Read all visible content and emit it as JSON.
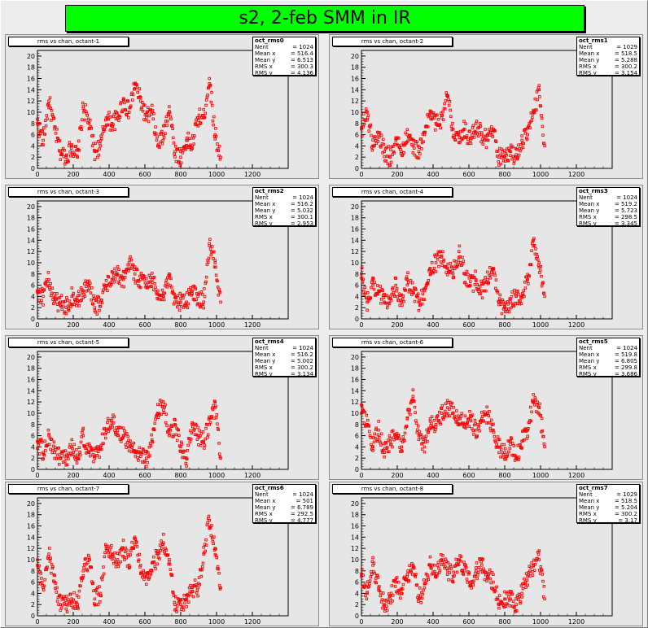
{
  "title": "s2, 2-feb SMM in IR",
  "stat_labels": {
    "entries": "Nent",
    "mean_x": "Mean x",
    "mean_y": "Mean y",
    "rms_x": "RMS x",
    "rms_y": "RMS y"
  },
  "chart_data": [
    {
      "type": "scatter",
      "title": "rms vs chan, octant-1",
      "stats_name": "oct_rms0",
      "stats": {
        "entries": "1024",
        "mean_x": "516.4",
        "mean_y": "6.513",
        "rms_x": "300.3",
        "rms_y": "4.136"
      },
      "xlim": [
        0,
        1400
      ],
      "ylim": [
        0,
        21
      ],
      "xticks": [
        0,
        200,
        400,
        600,
        800,
        1000,
        1200
      ],
      "yticks": [
        0,
        2,
        4,
        6,
        8,
        10,
        12,
        14,
        16,
        18,
        20
      ],
      "x": [
        0,
        32,
        64,
        96,
        128,
        160,
        192,
        224,
        256,
        288,
        320,
        352,
        384,
        416,
        448,
        480,
        512,
        544,
        576,
        608,
        640,
        672,
        704,
        736,
        768,
        800,
        832,
        864,
        896,
        928,
        960,
        992,
        1023
      ],
      "y": [
        8,
        5,
        12,
        7,
        3,
        2,
        4,
        2,
        11,
        8,
        3,
        4,
        9,
        8,
        9,
        12,
        10,
        15,
        12,
        9,
        10,
        4,
        6,
        11,
        3,
        2,
        5,
        4,
        9,
        9,
        16,
        6,
        2
      ],
      "color": "#ff0000"
    },
    {
      "type": "scatter",
      "title": "rms vs chan, octant-2",
      "stats_name": "oct_rms1",
      "stats": {
        "entries": "1029",
        "mean_x": "518.5",
        "mean_y": "5.288",
        "rms_x": "300.2",
        "rms_y": "3.154"
      },
      "xlim": [
        0,
        1400
      ],
      "ylim": [
        0,
        21
      ],
      "xticks": [
        0,
        200,
        400,
        600,
        800,
        1000,
        1200
      ],
      "yticks": [
        0,
        2,
        4,
        6,
        8,
        10,
        12,
        14,
        16,
        18,
        20
      ],
      "x": [
        0,
        32,
        64,
        96,
        128,
        160,
        192,
        224,
        256,
        288,
        320,
        352,
        384,
        416,
        448,
        480,
        512,
        544,
        576,
        608,
        640,
        672,
        704,
        736,
        768,
        800,
        832,
        864,
        896,
        928,
        960,
        992,
        1023
      ],
      "y": [
        7,
        10,
        4,
        6,
        3,
        2,
        5,
        3,
        6,
        4,
        3,
        6,
        10,
        8,
        9,
        13,
        7,
        6,
        7,
        5,
        8,
        6,
        5,
        7,
        2,
        2,
        3,
        2,
        5,
        6,
        10,
        14,
        4
      ],
      "color": "#ff0000"
    },
    {
      "type": "scatter",
      "title": "rms vs chan, octant-3",
      "stats_name": "oct_rms2",
      "stats": {
        "entries": "1024",
        "mean_x": "516.2",
        "mean_y": "5.032",
        "rms_x": "300.1",
        "rms_y": "2.953"
      },
      "xlim": [
        0,
        1400
      ],
      "ylim": [
        0,
        21
      ],
      "xticks": [
        0,
        200,
        400,
        600,
        800,
        1000,
        1200
      ],
      "yticks": [
        0,
        2,
        4,
        6,
        8,
        10,
        12,
        14,
        16,
        18,
        20
      ],
      "x": [
        0,
        32,
        64,
        96,
        128,
        160,
        192,
        224,
        256,
        288,
        320,
        352,
        384,
        416,
        448,
        480,
        512,
        544,
        576,
        608,
        640,
        672,
        704,
        736,
        768,
        800,
        832,
        864,
        896,
        928,
        960,
        992,
        1023
      ],
      "y": [
        5,
        4,
        7,
        3,
        3,
        2,
        4,
        3,
        5,
        6,
        2,
        3,
        6,
        7,
        8,
        7,
        10,
        8,
        7,
        6,
        7,
        5,
        4,
        8,
        3,
        3,
        3,
        5,
        4,
        3,
        13,
        10,
        3
      ],
      "color": "#ff0000"
    },
    {
      "type": "scatter",
      "title": "rms vs chan, octant-4",
      "stats_name": "oct_rms3",
      "stats": {
        "entries": "1024",
        "mean_x": "519.2",
        "mean_y": "5.723",
        "rms_x": "298.5",
        "rms_y": "3.345"
      },
      "xlim": [
        0,
        1400
      ],
      "ylim": [
        0,
        21
      ],
      "xticks": [
        0,
        200,
        400,
        600,
        800,
        1000,
        1200
      ],
      "yticks": [
        0,
        2,
        4,
        6,
        8,
        10,
        12,
        14,
        16,
        18,
        20
      ],
      "x": [
        0,
        32,
        64,
        96,
        128,
        160,
        192,
        224,
        256,
        288,
        320,
        352,
        384,
        416,
        448,
        480,
        512,
        544,
        576,
        608,
        640,
        672,
        704,
        736,
        768,
        800,
        832,
        864,
        896,
        928,
        960,
        992,
        1023
      ],
      "y": [
        8,
        3,
        6,
        5,
        3,
        4,
        6,
        3,
        7,
        5,
        3,
        5,
        9,
        10,
        11,
        9,
        8,
        12,
        8,
        6,
        7,
        5,
        7,
        9,
        3,
        2,
        3,
        4,
        4,
        7,
        14,
        10,
        4
      ],
      "color": "#ff0000"
    },
    {
      "type": "scatter",
      "title": "rms vs chan, octant-5",
      "stats_name": "oct_rms4",
      "stats": {
        "entries": "1024",
        "mean_x": "516.2",
        "mean_y": "5.002",
        "rms_x": "300.2",
        "rms_y": "3.134"
      },
      "xlim": [
        0,
        1400
      ],
      "ylim": [
        0,
        21
      ],
      "xticks": [
        0,
        200,
        400,
        600,
        800,
        1000,
        1200
      ],
      "yticks": [
        0,
        2,
        4,
        6,
        8,
        10,
        12,
        14,
        16,
        18,
        20
      ],
      "x": [
        0,
        32,
        64,
        96,
        128,
        160,
        192,
        224,
        256,
        288,
        320,
        352,
        384,
        416,
        448,
        480,
        512,
        544,
        576,
        608,
        640,
        672,
        704,
        736,
        768,
        800,
        832,
        864,
        896,
        928,
        960,
        992,
        1023
      ],
      "y": [
        5,
        3,
        6,
        3,
        2,
        2,
        4,
        2,
        6,
        3,
        2,
        4,
        7,
        9,
        6,
        6,
        4,
        3,
        3,
        2,
        5,
        10,
        12,
        6,
        8,
        4,
        2,
        8,
        6,
        5,
        8,
        11,
        2
      ],
      "color": "#ff0000"
    },
    {
      "type": "scatter",
      "title": "rms vs chan, octant-6",
      "stats_name": "oct_rms5",
      "stats": {
        "entries": "1024",
        "mean_x": "519.8",
        "mean_y": "6.805",
        "rms_x": "299.8",
        "rms_y": "3.686"
      },
      "xlim": [
        0,
        1400
      ],
      "ylim": [
        0,
        21
      ],
      "xticks": [
        0,
        200,
        400,
        600,
        800,
        1000,
        1200
      ],
      "yticks": [
        0,
        2,
        4,
        6,
        8,
        10,
        12,
        14,
        16,
        18,
        20
      ],
      "x": [
        0,
        32,
        64,
        96,
        128,
        160,
        192,
        224,
        256,
        288,
        320,
        352,
        384,
        416,
        448,
        480,
        512,
        544,
        576,
        608,
        640,
        672,
        704,
        736,
        768,
        800,
        832,
        864,
        896,
        928,
        960,
        992,
        1023
      ],
      "y": [
        10,
        8,
        4,
        7,
        3,
        5,
        6,
        4,
        9,
        13,
        6,
        4,
        9,
        8,
        10,
        11,
        10,
        9,
        8,
        9,
        7,
        9,
        10,
        7,
        4,
        3,
        5,
        2,
        5,
        7,
        12,
        11,
        4
      ],
      "color": "#ff0000"
    },
    {
      "type": "scatter",
      "title": "rms vs chan, octant-7",
      "stats_name": "oct_rms6",
      "stats": {
        "entries": "1024",
        "mean_x": "501",
        "mean_y": "6.789",
        "rms_x": "292.5",
        "rms_y": "4.777"
      },
      "xlim": [
        0,
        1400
      ],
      "ylim": [
        0,
        21
      ],
      "xticks": [
        0,
        200,
        400,
        600,
        800,
        1000,
        1200
      ],
      "yticks": [
        0,
        2,
        4,
        6,
        8,
        10,
        12,
        14,
        16,
        18,
        20
      ],
      "x": [
        0,
        32,
        64,
        96,
        128,
        160,
        192,
        224,
        256,
        288,
        320,
        352,
        384,
        416,
        448,
        480,
        512,
        544,
        576,
        608,
        640,
        672,
        704,
        736,
        768,
        800,
        832,
        864,
        896,
        928,
        960,
        992,
        1023
      ],
      "y": [
        9,
        5,
        11,
        6,
        2,
        2,
        3,
        2,
        8,
        10,
        3,
        4,
        12,
        11,
        10,
        12,
        9,
        14,
        9,
        7,
        8,
        11,
        13,
        10,
        2,
        2,
        3,
        5,
        5,
        11,
        17,
        12,
        5
      ],
      "color": "#ff0000"
    },
    {
      "type": "scatter",
      "title": "rms vs chan, octant-8",
      "stats_name": "oct_rms7",
      "stats": {
        "entries": "1029",
        "mean_x": "518.5",
        "mean_y": "5.204",
        "rms_x": "300.2",
        "rms_y": "3.17"
      },
      "xlim": [
        0,
        1400
      ],
      "ylim": [
        0,
        21
      ],
      "xticks": [
        0,
        200,
        400,
        600,
        800,
        1000,
        1200
      ],
      "yticks": [
        0,
        2,
        4,
        6,
        8,
        10,
        12,
        14,
        16,
        18,
        20
      ],
      "x": [
        0,
        32,
        64,
        96,
        128,
        160,
        192,
        224,
        256,
        288,
        320,
        352,
        384,
        416,
        448,
        480,
        512,
        544,
        576,
        608,
        640,
        672,
        704,
        736,
        768,
        800,
        832,
        864,
        896,
        928,
        960,
        992,
        1023
      ],
      "y": [
        7,
        4,
        9,
        5,
        2,
        3,
        6,
        4,
        7,
        9,
        3,
        5,
        9,
        7,
        10,
        8,
        7,
        10,
        8,
        6,
        8,
        9,
        7,
        6,
        2,
        3,
        3,
        2,
        4,
        7,
        9,
        10,
        3
      ],
      "color": "#ff0000"
    }
  ]
}
